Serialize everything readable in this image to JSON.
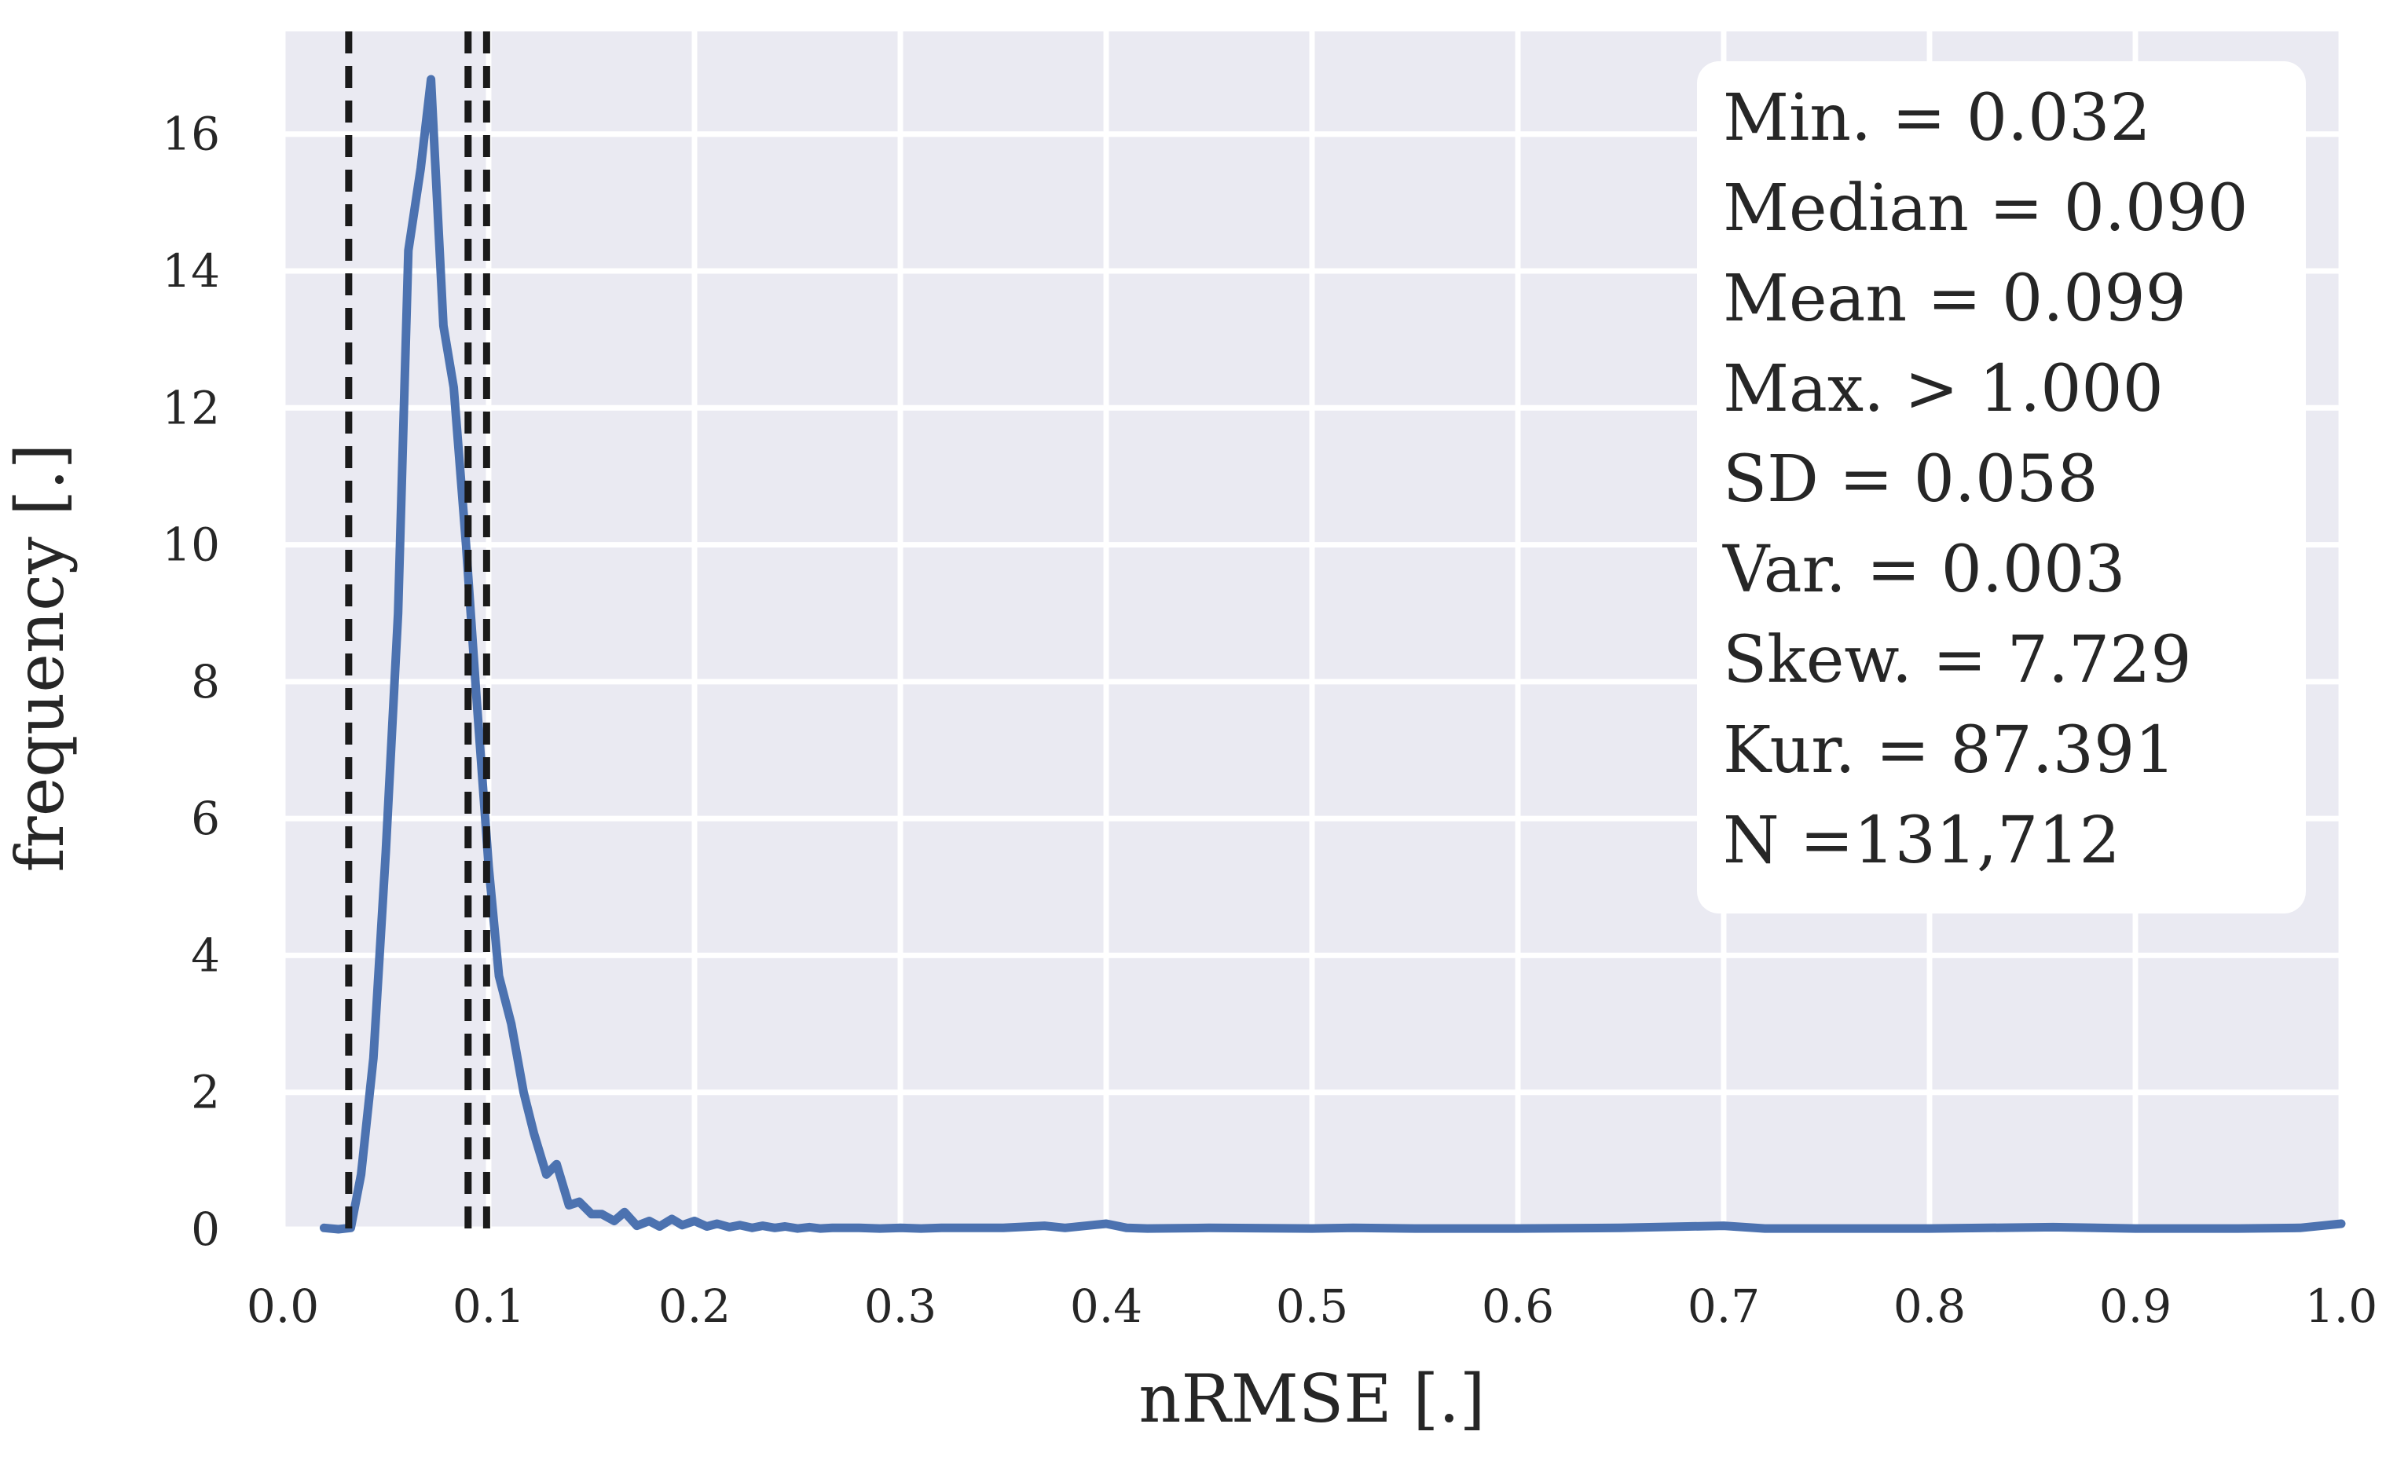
{
  "chart_data": {
    "type": "line",
    "title": "",
    "xlabel": "nRMSE [.]",
    "ylabel": "frequency [.]",
    "xlim": [
      0.0,
      1.0
    ],
    "ylim": [
      0,
      17.5
    ],
    "grid": true,
    "x_ticks": [
      0.0,
      0.1,
      0.2,
      0.3,
      0.4,
      0.5,
      0.6,
      0.7,
      0.8,
      0.9,
      1.0
    ],
    "x_tick_labels": [
      "0.0",
      "0.1",
      "0.2",
      "0.3",
      "0.4",
      "0.5",
      "0.6",
      "0.7",
      "0.8",
      "0.9",
      "1.0"
    ],
    "y_ticks": [
      0,
      2,
      4,
      6,
      8,
      10,
      12,
      14,
      16
    ],
    "y_tick_labels": [
      "0",
      "2",
      "4",
      "6",
      "8",
      "10",
      "12",
      "14",
      "16"
    ],
    "series": [
      {
        "name": "nRMSE frequency",
        "color": "#4c72b0",
        "x": [
          0.02,
          0.027,
          0.033,
          0.038,
          0.044,
          0.05,
          0.056,
          0.061,
          0.067,
          0.072,
          0.078,
          0.083,
          0.089,
          0.094,
          0.1,
          0.105,
          0.111,
          0.117,
          0.122,
          0.128,
          0.133,
          0.139,
          0.144,
          0.15,
          0.155,
          0.161,
          0.166,
          0.172,
          0.178,
          0.183,
          0.189,
          0.194,
          0.2,
          0.206,
          0.211,
          0.217,
          0.222,
          0.228,
          0.233,
          0.239,
          0.244,
          0.25,
          0.256,
          0.261,
          0.267,
          0.272,
          0.28,
          0.29,
          0.3,
          0.31,
          0.32,
          0.33,
          0.35,
          0.37,
          0.38,
          0.4,
          0.41,
          0.42,
          0.45,
          0.5,
          0.52,
          0.55,
          0.6,
          0.65,
          0.7,
          0.72,
          0.8,
          0.86,
          0.9,
          0.95,
          0.98,
          1.0
        ],
        "y": [
          0.02,
          0.0,
          0.02,
          0.8,
          2.5,
          5.5,
          9.0,
          14.3,
          15.5,
          16.8,
          13.2,
          12.3,
          10.0,
          7.8,
          5.3,
          3.7,
          3.0,
          2.0,
          1.4,
          0.8,
          0.95,
          0.35,
          0.4,
          0.22,
          0.22,
          0.12,
          0.25,
          0.05,
          0.12,
          0.04,
          0.15,
          0.06,
          0.12,
          0.04,
          0.08,
          0.03,
          0.06,
          0.02,
          0.05,
          0.02,
          0.04,
          0.01,
          0.03,
          0.01,
          0.02,
          0.02,
          0.02,
          0.01,
          0.02,
          0.01,
          0.02,
          0.02,
          0.02,
          0.05,
          0.02,
          0.08,
          0.02,
          0.01,
          0.02,
          0.01,
          0.02,
          0.01,
          0.01,
          0.02,
          0.05,
          0.01,
          0.01,
          0.03,
          0.01,
          0.01,
          0.02,
          0.08
        ]
      }
    ],
    "reference_lines": [
      {
        "name": "min",
        "x": 0.032,
        "style": "dashed",
        "color": "#1a1a1a"
      },
      {
        "name": "median",
        "x": 0.09,
        "style": "dashed",
        "color": "#1a1a1a"
      },
      {
        "name": "mean",
        "x": 0.099,
        "style": "dashed",
        "color": "#1a1a1a"
      }
    ],
    "annotation_box": {
      "lines": [
        "Min. = 0.032",
        "Median = 0.090",
        "Mean = 0.099",
        "Max. > 1.000",
        "SD = 0.058",
        "Var. = 0.003",
        "Skew. = 7.729",
        "Kur. = 87.391",
        "N =131,712"
      ],
      "placement": "top-right"
    },
    "colors": {
      "plot_background": "#eaeaf2",
      "grid": "#ffffff",
      "line": "#4c72b0",
      "reference_line": "#1a1a1a",
      "text": "#262626"
    }
  }
}
